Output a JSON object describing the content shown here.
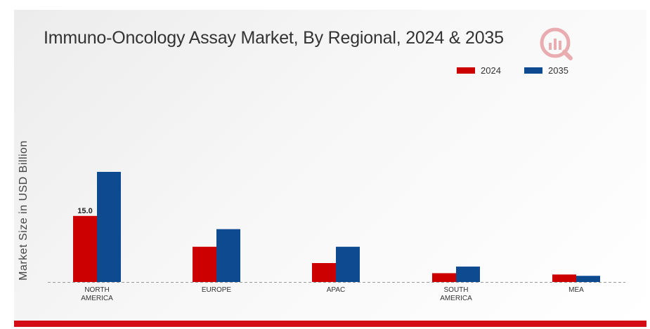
{
  "chart_data": {
    "type": "bar",
    "title": "Immuno-Oncology Assay Market, By Regional, 2024 & 2035",
    "ylabel": "Market Size in USD Billion",
    "xlabel": "",
    "categories": [
      [
        "NORTH",
        "AMERICA"
      ],
      [
        "EUROPE"
      ],
      [
        "APAC"
      ],
      [
        "SOUTH",
        "AMERICA"
      ],
      [
        "MEA"
      ]
    ],
    "series": [
      {
        "name": "2024",
        "color": "#cc0000",
        "values": [
          15.0,
          8.0,
          4.3,
          2.0,
          1.7
        ]
      },
      {
        "name": "2035",
        "color": "#0d4a8f",
        "values": [
          25.0,
          12.0,
          8.0,
          3.5,
          1.4
        ]
      }
    ],
    "data_labels": [
      {
        "series": 0,
        "category": 0,
        "text": "15.0"
      }
    ],
    "ylim": [
      0,
      30
    ],
    "grid": false,
    "legend_position": "top-right"
  },
  "colors": {
    "accent": "#d40c16"
  },
  "icons": {
    "logo": "market-research-logo-icon"
  }
}
